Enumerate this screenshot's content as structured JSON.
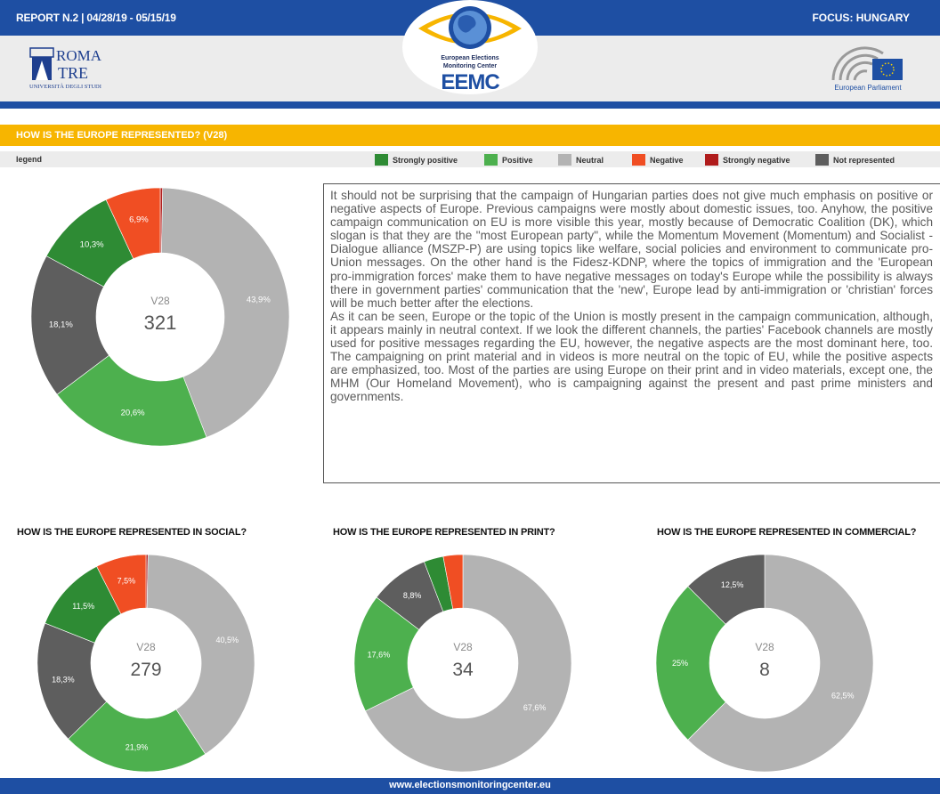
{
  "header": {
    "report": "REPORT N.2 | 04/28/19 - 05/15/19",
    "focus": "FOCUS: HUNGARY",
    "roma_line1": "ROMA",
    "roma_line2": "TRE",
    "roma_line3": "UNIVERSITÀ DEGLI STUDI",
    "eemc_line1": "European Elections",
    "eemc_line2": "Monitoring Center",
    "eemc_acronym": "EEMC",
    "ep_label": "European Parliament"
  },
  "section_title": "HOW IS THE EUROPE REPRESENTED? (V28)",
  "legend": {
    "title": "legend",
    "items": [
      {
        "label": "Strongly positive",
        "color": "#2e8b34"
      },
      {
        "label": "Positive",
        "color": "#4db04e"
      },
      {
        "label": "Neutral",
        "color": "#b3b3b3"
      },
      {
        "label": "Negative",
        "color": "#f04e23"
      },
      {
        "label": "Strongly negative",
        "color": "#b01c1c"
      },
      {
        "label": "Not represented",
        "color": "#5e5e5e"
      }
    ]
  },
  "analysis_text": {
    "p1": "It should not be surprising that the campaign of Hungarian parties does not give much emphasis on positive or negative aspects of Europe. Previous campaigns were mostly about domestic issues, too. Anyhow, the positive campaign communication on EU is more visible this year, mostly because of Democratic Coalition (DK), which slogan is that they are the \"most European party\", while the Momentum Movement (Momentum) and Socialist - Dialogue alliance (MSZP-P) are using topics like welfare, social policies and environment to communicate pro-Union messages. On the other hand is the Fidesz-KDNP, where the topics of immigration and the 'European pro-immigration forces' make them to have negative messages on today's Europe while the possibility is always there in government parties' communication that the 'new', Europe lead by anti-immigration or 'christian' forces will be much better after the elections.",
    "p2": "As it can be seen, Europe or the topic of the Union is mostly present in the campaign communication, although, it appears mainly in neutral context. If we look the different channels, the parties' Facebook channels are mostly used for positive messages regarding the EU, however, the negative aspects are the most dominant here, too. The campaigning on print material and in videos is more neutral on the topic of EU, while the positive aspects are emphasized, too. Most of the parties are using Europe on their print and in video materials, except one, the MHM (Our Homeland Movement), who is campaigning against the present and past prime ministers and governments."
  },
  "subtitles": {
    "social": "HOW IS THE EUROPE REPRESENTED IN SOCIAL?",
    "print": "HOW IS THE EUROPE REPRESENTED IN PRINT?",
    "commercial": "HOW IS THE EUROPE REPRESENTED IN COMMERCIAL?"
  },
  "footer": "www.electionsmonitoringcenter.eu",
  "chart_data": [
    {
      "type": "pie",
      "center_label": "V28",
      "total": "321",
      "categories": [
        "Strongly negative",
        "Neutral",
        "Positive",
        "Not represented",
        "Strongly positive",
        "Negative"
      ],
      "values": [
        0.3,
        43.9,
        20.6,
        18.1,
        10.3,
        6.9
      ],
      "labels": [
        "",
        "43,9%",
        "20,6%",
        "18,1%",
        "10,3%",
        "6,9%"
      ]
    },
    {
      "type": "pie",
      "title": "HOW IS THE EUROPE REPRESENTED IN SOCIAL?",
      "center_label": "V28",
      "total": "279",
      "categories": [
        "Strongly negative",
        "Neutral",
        "Positive",
        "Not represented",
        "Strongly positive",
        "Negative"
      ],
      "values": [
        0.3,
        40.5,
        21.9,
        18.3,
        11.5,
        7.5
      ],
      "labels": [
        "",
        "40,5%",
        "21,9%",
        "18,3%",
        "11,5%",
        "7,5%"
      ]
    },
    {
      "type": "pie",
      "title": "HOW IS THE EUROPE REPRESENTED IN PRINT?",
      "center_label": "V28",
      "total": "34",
      "categories": [
        "Neutral",
        "Positive",
        "Not represented",
        "Strongly positive",
        "Negative"
      ],
      "values": [
        67.6,
        17.6,
        8.8,
        2.9,
        2.9
      ],
      "labels": [
        "67,6%",
        "17,6%",
        "8,8%",
        "",
        ""
      ]
    },
    {
      "type": "pie",
      "title": "HOW IS THE EUROPE REPRESENTED IN COMMERCIAL?",
      "center_label": "V28",
      "total": "8",
      "categories": [
        "Neutral",
        "Positive",
        "Not represented"
      ],
      "values": [
        62.5,
        25,
        12.5
      ],
      "labels": [
        "62,5%",
        "25%",
        "12,5%"
      ]
    }
  ]
}
